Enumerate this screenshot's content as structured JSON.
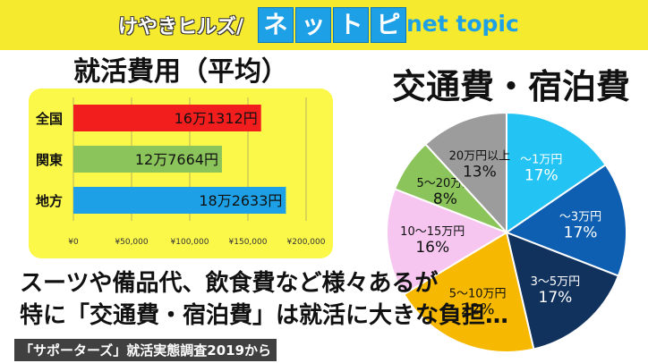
{
  "header": {
    "brand": "けやきヒルズ/",
    "logo_chars": [
      "ネ",
      "ッ",
      "ト",
      "ピ"
    ],
    "logo_sub": "net topic",
    "bg_color": "#f5ea2e",
    "logo_color": "#1ea0e6"
  },
  "caption": {
    "line1": "スーツや備品代、飲食費など様々あるが",
    "line2": "特に「交通費・宿泊費」は就活に大きな負担…"
  },
  "source": "「サポーターズ」就活実態調査2019から",
  "chart_data": [
    {
      "type": "bar",
      "title": "就活費用（平均）",
      "orientation": "horizontal",
      "categories": [
        "全国",
        "関東",
        "地方"
      ],
      "values": [
        161312,
        127664,
        182633
      ],
      "value_labels": [
        "16万1312円",
        "12万7664円",
        "18万2633円"
      ],
      "colors": [
        "#f21d1d",
        "#8bc45b",
        "#1ea0e6"
      ],
      "xlim": [
        0,
        200000
      ],
      "xticks": [
        0,
        50000,
        100000,
        150000,
        200000
      ],
      "xtick_labels": [
        "¥0",
        "¥50,000",
        "¥100,000",
        "¥150,000",
        "¥200,000"
      ],
      "grid": true,
      "background": "#fbf84a"
    },
    {
      "type": "pie",
      "title": "交通費・宿泊費",
      "slices": [
        {
          "label": "〜1万円",
          "value": 17,
          "value_label": "17%",
          "color": "#23c4f3",
          "text_color": "#ffffff"
        },
        {
          "label": "〜3万円",
          "value": 17,
          "value_label": "17%",
          "color": "#0e5fb1",
          "text_color": "#ffffff"
        },
        {
          "label": "3〜5万円",
          "value": 17,
          "value_label": "17%",
          "color": "#12325e",
          "text_color": "#ffffff"
        },
        {
          "label": "5〜10万円",
          "value": 22,
          "value_label": "22%",
          "color": "#f6b800",
          "text_color": "#111111"
        },
        {
          "label": "10〜15万円",
          "value": 16,
          "value_label": "16%",
          "color": "#f6c6f0",
          "text_color": "#111111"
        },
        {
          "label": "5〜20万円",
          "value": 8,
          "value_label": "8%",
          "color": "#8bc45b",
          "text_color": "#111111"
        },
        {
          "label": "20万円以上",
          "value": 13,
          "value_label": "13%",
          "color": "#9c9c9c",
          "text_color": "#111111"
        }
      ]
    }
  ]
}
